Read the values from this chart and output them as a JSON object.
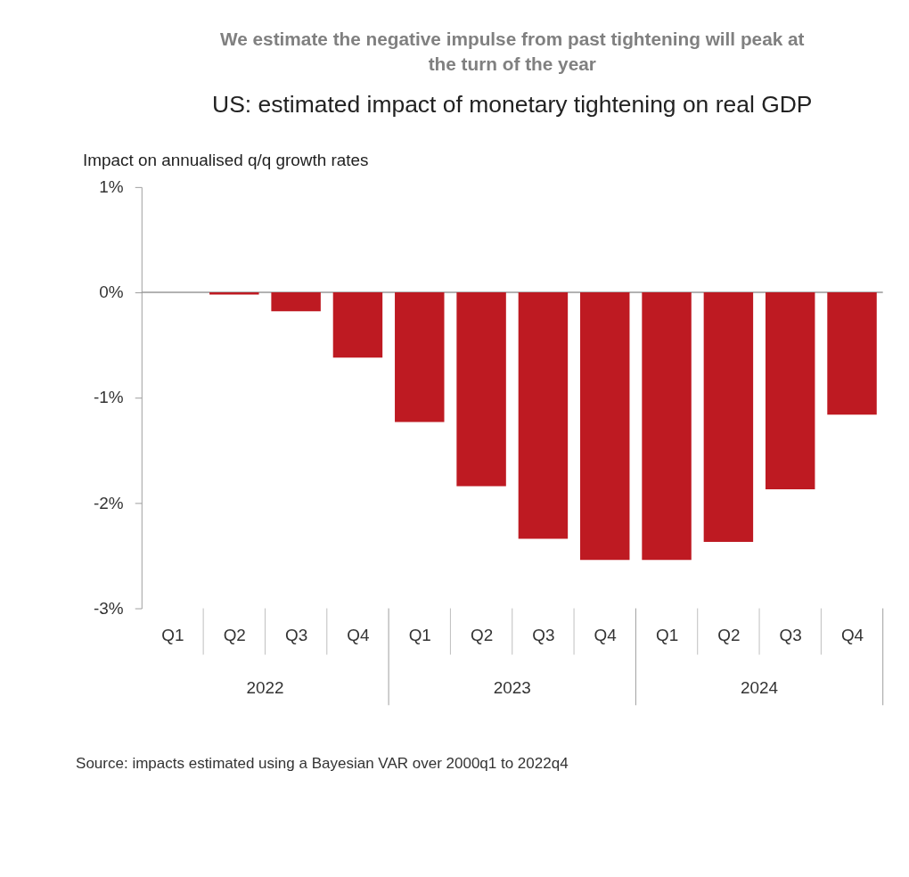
{
  "chart_data": {
    "type": "bar",
    "title": "We estimate the negative impulse from past tightening will peak at the turn of the year",
    "subtitle": "US: estimated impact of monetary tightening on real GDP",
    "ylabel": "Impact on annualised q/q growth rates",
    "categories": [
      "Q1",
      "Q2",
      "Q3",
      "Q4",
      "Q1",
      "Q2",
      "Q3",
      "Q4",
      "Q1",
      "Q2",
      "Q3",
      "Q4"
    ],
    "values": [
      0,
      -0.02,
      -0.18,
      -0.62,
      -1.23,
      -1.84,
      -2.34,
      -2.54,
      -2.54,
      -2.37,
      -1.87,
      -1.16
    ],
    "color": "#be1a22",
    "ylim": [
      -3,
      1
    ],
    "yticks": [
      {
        "value": 1,
        "label": "1%"
      },
      {
        "value": 0,
        "label": "0%"
      },
      {
        "value": -1,
        "label": "-1%"
      },
      {
        "value": -2,
        "label": "-2%"
      },
      {
        "value": -3,
        "label": "-3%"
      }
    ],
    "ref_lines": [
      {
        "axis": "y",
        "value": 0,
        "color": "#999999"
      }
    ],
    "annotations": [
      {
        "text": "2022"
      },
      {
        "text": "2023"
      },
      {
        "text": "2024"
      },
      "Source: impacts estimated using a Bayesian VAR over 2000q1 to 2022q4"
    ],
    "grid": false
  }
}
